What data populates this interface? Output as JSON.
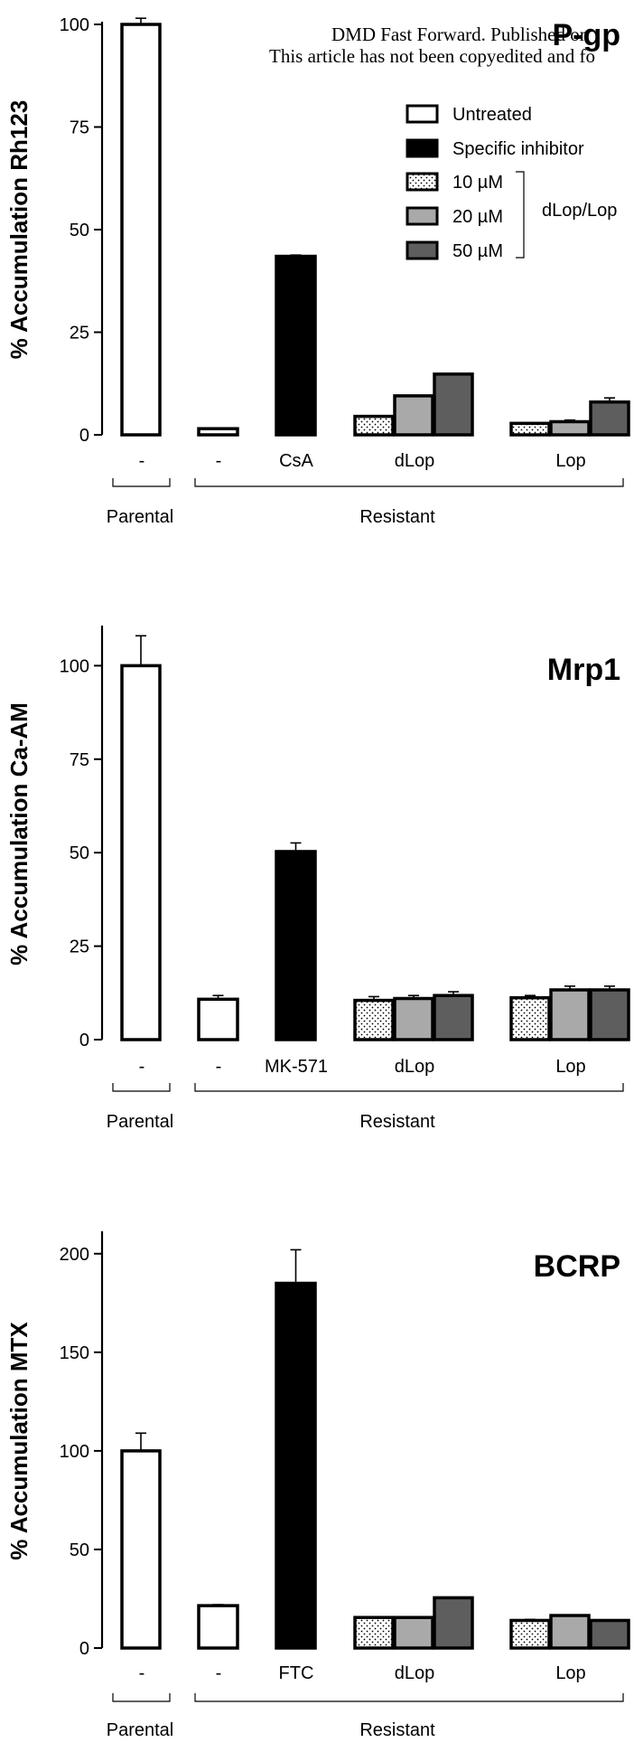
{
  "header": {
    "line1": "DMD Fast Forward. Published on",
    "line2": "This article has not been copyedited and fo"
  },
  "legend": {
    "items": [
      {
        "label": "Untreated",
        "fill": "white"
      },
      {
        "label": "Specific inhibitor",
        "fill": "black"
      },
      {
        "label": "10 µM",
        "fill": "dots"
      },
      {
        "label": "20 µM",
        "fill": "light"
      },
      {
        "label": "50 µM",
        "fill": "dark"
      }
    ],
    "bracket_label": "dLop/Lop"
  },
  "colors": {
    "untreated": "#ffffff",
    "inhibitor": "#000000",
    "dose10": "#ffffff",
    "dose20": "#a9a9a9",
    "dose50": "#5e5e5e",
    "stroke": "#000000"
  },
  "groups": {
    "parental": "Parental",
    "resistant": "Resistant"
  },
  "chart_data": [
    {
      "type": "bar",
      "title": "P-gp",
      "ylabel": "% Accumulation Rh123",
      "ylim": [
        0,
        100
      ],
      "yticks": [
        0,
        25,
        50,
        75,
        100
      ],
      "categories": [
        "-",
        "-",
        "CsA",
        "dLop",
        "Lop"
      ],
      "bars": [
        {
          "category": "-",
          "group": "Parental",
          "fill": "white",
          "value": 100,
          "error": 1.5
        },
        {
          "category": "-",
          "group": "Resistant",
          "fill": "white",
          "value": 1.5,
          "error": 0
        },
        {
          "category": "CsA",
          "group": "Resistant",
          "fill": "black",
          "value": 43.5,
          "error": 0.3
        },
        {
          "category": "dLop",
          "group": "Resistant",
          "fill": "dots",
          "value": 4.5,
          "error": 0
        },
        {
          "category": "dLop",
          "group": "Resistant",
          "fill": "light",
          "value": 9.5,
          "error": 0
        },
        {
          "category": "dLop",
          "group": "Resistant",
          "fill": "dark",
          "value": 14.8,
          "error": 0
        },
        {
          "category": "Lop",
          "group": "Resistant",
          "fill": "dots",
          "value": 2.8,
          "error": 0
        },
        {
          "category": "Lop",
          "group": "Resistant",
          "fill": "light",
          "value": 3.2,
          "error": 0.4
        },
        {
          "category": "Lop",
          "group": "Resistant",
          "fill": "dark",
          "value": 8.0,
          "error": 1.0
        }
      ]
    },
    {
      "type": "bar",
      "title": "Mrp1",
      "ylabel": "% Accumulation Ca-AM",
      "ylim": [
        0,
        110
      ],
      "yticks": [
        0,
        25,
        50,
        75,
        100
      ],
      "categories": [
        "-",
        "-",
        "MK-571",
        "dLop",
        "Lop"
      ],
      "bars": [
        {
          "category": "-",
          "group": "Parental",
          "fill": "white",
          "value": 100,
          "error": 8.0
        },
        {
          "category": "-",
          "group": "Resistant",
          "fill": "white",
          "value": 10.8,
          "error": 1.0
        },
        {
          "category": "MK-571",
          "group": "Resistant",
          "fill": "black",
          "value": 50.3,
          "error": 2.3
        },
        {
          "category": "dLop",
          "group": "Resistant",
          "fill": "dots",
          "value": 10.5,
          "error": 1.0
        },
        {
          "category": "dLop",
          "group": "Resistant",
          "fill": "light",
          "value": 11.0,
          "error": 0.8
        },
        {
          "category": "dLop",
          "group": "Resistant",
          "fill": "dark",
          "value": 11.8,
          "error": 1.0
        },
        {
          "category": "Lop",
          "group": "Resistant",
          "fill": "dots",
          "value": 11.2,
          "error": 0.6
        },
        {
          "category": "Lop",
          "group": "Resistant",
          "fill": "light",
          "value": 13.3,
          "error": 1.0
        },
        {
          "category": "Lop",
          "group": "Resistant",
          "fill": "dark",
          "value": 13.3,
          "error": 1.0
        }
      ]
    },
    {
      "type": "bar",
      "title": "BCRP",
      "ylabel": "% Accumulation MTX",
      "ylim": [
        0,
        210
      ],
      "yticks": [
        0,
        50,
        100,
        150,
        200
      ],
      "categories": [
        "-",
        "-",
        "FTC",
        "dLop",
        "Lop"
      ],
      "bars": [
        {
          "category": "-",
          "group": "Parental",
          "fill": "white",
          "value": 100,
          "error": 9.0
        },
        {
          "category": "-",
          "group": "Resistant",
          "fill": "white",
          "value": 21.5,
          "error": 0.5
        },
        {
          "category": "FTC",
          "group": "Resistant",
          "fill": "black",
          "value": 185,
          "error": 17.0
        },
        {
          "category": "dLop",
          "group": "Resistant",
          "fill": "dots",
          "value": 15.5,
          "error": 0.3
        },
        {
          "category": "dLop",
          "group": "Resistant",
          "fill": "light",
          "value": 15.5,
          "error": 0
        },
        {
          "category": "dLop",
          "group": "Resistant",
          "fill": "dark",
          "value": 25.5,
          "error": 0
        },
        {
          "category": "Lop",
          "group": "Resistant",
          "fill": "dots",
          "value": 14.0,
          "error": 0.5
        },
        {
          "category": "Lop",
          "group": "Resistant",
          "fill": "light",
          "value": 16.5,
          "error": 0
        },
        {
          "category": "Lop",
          "group": "Resistant",
          "fill": "dark",
          "value": 14.0,
          "error": 0
        }
      ]
    }
  ]
}
